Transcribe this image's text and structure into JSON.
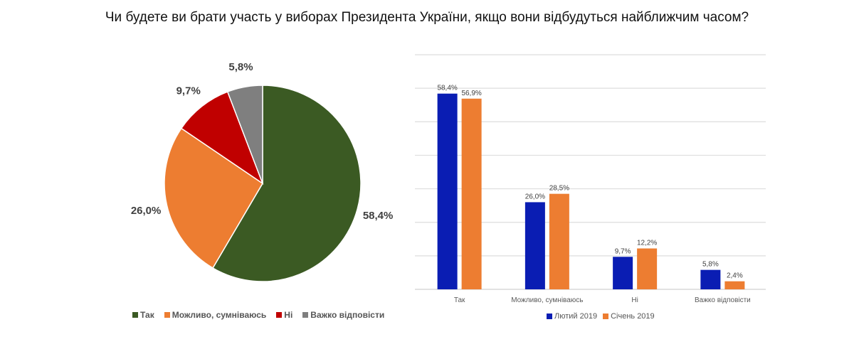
{
  "title": "Чи будете ви брати участь у виборах Президента України, якщо вони відбудуться найближчим часом?",
  "chart_data": [
    {
      "type": "pie",
      "categories": [
        "Так",
        "Можливо, сумніваюсь",
        "Ні",
        "Важко відповісти"
      ],
      "values": [
        58.4,
        26.0,
        9.7,
        5.8
      ],
      "labels": [
        "58,4%",
        "26,0%",
        "9,7%",
        "5,8%"
      ],
      "colors": [
        "#3b5a23",
        "#ed7d31",
        "#c00000",
        "#7f7f7f"
      ],
      "legend": "bottom"
    },
    {
      "type": "bar",
      "categories": [
        "Так",
        "Можливо, сумніваюсь",
        "Ні",
        "Важко відповісти"
      ],
      "series": [
        {
          "name": "Лютий 2019",
          "values": [
            58.4,
            26.0,
            9.7,
            5.8
          ],
          "labels": [
            "58,4%",
            "26,0%",
            "9,7%",
            "5,8%"
          ],
          "color": "#0a1db3"
        },
        {
          "name": "Січень 2019",
          "values": [
            56.9,
            28.5,
            12.2,
            2.4
          ],
          "labels": [
            "56,9%",
            "28,5%",
            "12,2%",
            "2,4%"
          ],
          "color": "#ed7d31"
        }
      ],
      "ylim": [
        0,
        70
      ],
      "grid": true,
      "legend": "bottom"
    }
  ]
}
